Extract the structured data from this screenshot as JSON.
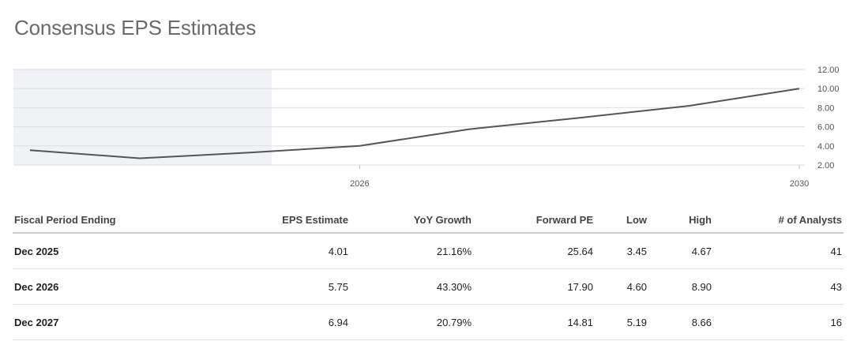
{
  "title": "Consensus EPS Estimates",
  "chart_data": {
    "type": "line",
    "x": [
      2023.0,
      2024.0,
      2025.0,
      2026.0,
      2027.0,
      2028.0,
      2029.0,
      2030.0
    ],
    "series": [
      {
        "values": [
          3.55,
          2.7,
          3.3,
          4.01,
          5.75,
          6.94,
          8.2,
          10.0
        ]
      }
    ],
    "x_ticks": [
      2026,
      2030
    ],
    "x_tick_labels": [
      "2026",
      "2030"
    ],
    "xlim": [
      2022.85,
      2030.05
    ],
    "y_ticks": [
      2,
      4,
      6,
      8,
      10,
      12
    ],
    "y_tick_labels": [
      "2.00",
      "4.00",
      "6.00",
      "8.00",
      "10.00",
      "12.00"
    ],
    "ylim": [
      2,
      12
    ],
    "grid": true,
    "shaded_region": [
      2022.85,
      2025.2
    ],
    "line_color": "#555555",
    "shade_color": "#f1f2f6"
  },
  "table": {
    "headers": [
      "Fiscal Period Ending",
      "EPS Estimate",
      "YoY Growth",
      "Forward PE",
      "Low",
      "High",
      "# of Analysts"
    ],
    "rows": [
      [
        "Dec 2025",
        "4.01",
        "21.16%",
        "25.64",
        "3.45",
        "4.67",
        "41"
      ],
      [
        "Dec 2026",
        "5.75",
        "43.30%",
        "17.90",
        "4.60",
        "8.90",
        "43"
      ],
      [
        "Dec 2027",
        "6.94",
        "20.79%",
        "14.81",
        "5.19",
        "8.66",
        "16"
      ]
    ]
  }
}
